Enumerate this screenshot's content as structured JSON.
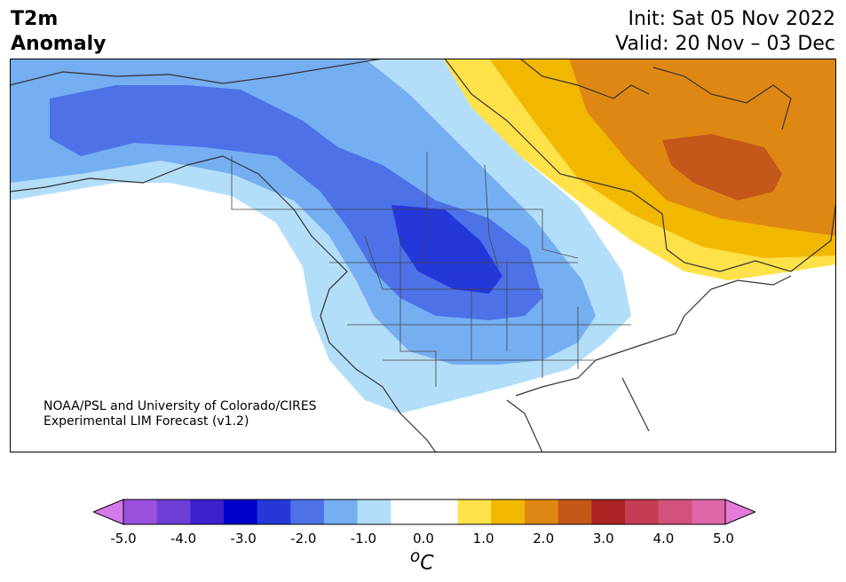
{
  "header": {
    "title_line1": "T2m",
    "title_line2": "Anomaly",
    "init": "Init: Sat 05 Nov 2022",
    "valid": "Valid: 20 Nov – 03 Dec"
  },
  "credit": {
    "line1": "NOAA/PSL and University of Colorado/CIRES",
    "line2": "Experimental LIM Forecast (v1.2)"
  },
  "colorbar": {
    "ticks": [
      "-5.0",
      "-4.0",
      "-3.0",
      "-2.0",
      "-1.0",
      "0.0",
      "1.0",
      "2.0",
      "3.0",
      "4.0",
      "5.0"
    ],
    "unit_base": "o",
    "unit": "C",
    "colors": [
      "#9b50dd",
      "#6e3ed9",
      "#3b22cc",
      "#0000cd",
      "#2438da",
      "#4d72e8",
      "#76aef2",
      "#b3def9",
      "#ffffff",
      "#ffffff",
      "#ffe14a",
      "#f2b700",
      "#de8813",
      "#c4571a",
      "#aa2323",
      "#c53c55",
      "#d2527b",
      "#df66a8"
    ],
    "under_color": "#d57ae8",
    "over_color": "#e57ad9"
  }
}
